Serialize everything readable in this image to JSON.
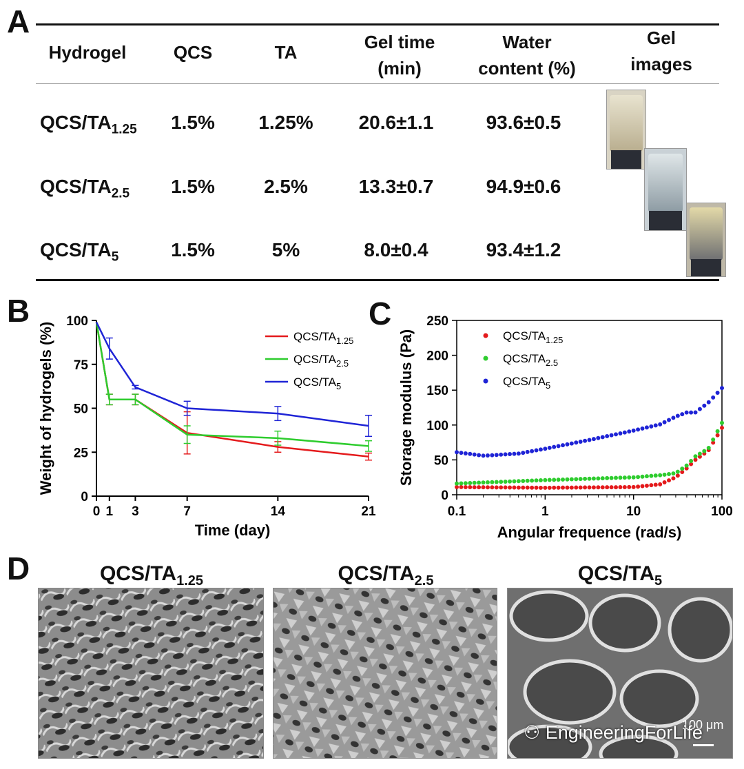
{
  "panels": {
    "a": "A",
    "b": "B",
    "c": "C",
    "d": "D"
  },
  "table": {
    "headers": {
      "hydrogel": "Hydrogel",
      "qcs": "QCS",
      "ta": "TA",
      "gel_time_1": "Gel time",
      "gel_time_2": "(min)",
      "water_1": "Water",
      "water_2": "content (%)",
      "images_1": "Gel",
      "images_2": "images"
    },
    "rows": [
      {
        "name": "QCS/TA",
        "sub": "1.25",
        "qcs": "1.5%",
        "ta": "1.25%",
        "gel_time": "20.6±1.1",
        "water": "93.6±0.5"
      },
      {
        "name": "QCS/TA",
        "sub": "2.5",
        "qcs": "1.5%",
        "ta": "2.5%",
        "gel_time": "13.3±0.7",
        "water": "94.9±0.6"
      },
      {
        "name": "QCS/TA",
        "sub": "5",
        "qcs": "1.5%",
        "ta": "5%",
        "gel_time": "8.0±0.4",
        "water": "93.4±1.2"
      }
    ]
  },
  "chart_data": [
    {
      "type": "line",
      "panel": "B",
      "xlabel": "Time (day)",
      "ylabel": "Weight of hydrogels (%)",
      "xlim": [
        0,
        21
      ],
      "ylim": [
        0,
        100
      ],
      "xticks": [
        0,
        1,
        3,
        7,
        14,
        21
      ],
      "yticks": [
        0,
        25,
        50,
        75,
        100
      ],
      "x": [
        0,
        1,
        3,
        7,
        14,
        21
      ],
      "legend_position": "top-right",
      "series": [
        {
          "name": "QCS/TA",
          "sub": "1.25",
          "color": "#e41a1c",
          "values": [
            99,
            55,
            55,
            36,
            28,
            22.5
          ],
          "errors": [
            0,
            3,
            3,
            12,
            3,
            2
          ]
        },
        {
          "name": "QCS/TA",
          "sub": "2.5",
          "color": "#2ecc2e",
          "values": [
            99,
            55,
            55,
            35,
            33,
            28.5
          ],
          "errors": [
            0,
            3,
            3,
            5,
            4,
            3
          ]
        },
        {
          "name": "QCS/TA",
          "sub": "5",
          "color": "#1f24d6",
          "values": [
            99,
            84,
            62,
            50,
            47,
            40
          ],
          "errors": [
            0,
            6,
            1,
            4,
            4,
            6
          ]
        }
      ]
    },
    {
      "type": "scatter",
      "panel": "C",
      "xlabel": "Angular frequence (rad/s)",
      "ylabel": "Storage modulus (Pa)",
      "xscale": "log",
      "xlim": [
        0.1,
        100
      ],
      "ylim": [
        0,
        250
      ],
      "xticks": [
        0.1,
        1,
        10,
        100
      ],
      "xtick_labels": [
        "0.1",
        "1",
        "10",
        "100"
      ],
      "yticks": [
        0,
        50,
        100,
        150,
        200,
        250
      ],
      "legend_position": "top-left",
      "series": [
        {
          "name": "QCS/TA",
          "sub": "1.25",
          "color": "#e41a1c",
          "anchors_x": [
            0.1,
            1,
            10,
            20,
            30,
            40,
            50,
            70,
            100
          ],
          "anchors_y": [
            11,
            10,
            11,
            15,
            25,
            38,
            50,
            63,
            96
          ]
        },
        {
          "name": "QCS/TA",
          "sub": "2.5",
          "color": "#2ecc2e",
          "anchors_x": [
            0.1,
            1,
            10,
            20,
            30,
            40,
            50,
            70,
            100
          ],
          "anchors_y": [
            16,
            21,
            25,
            28,
            31,
            42,
            55,
            66,
            103
          ]
        },
        {
          "name": "QCS/TA",
          "sub": "5",
          "color": "#1f24d6",
          "anchors_x": [
            0.1,
            0.2,
            0.5,
            1,
            3,
            10,
            20,
            30,
            40,
            50,
            70,
            100
          ],
          "anchors_y": [
            61,
            56,
            59,
            66,
            78,
            92,
            101,
            112,
            118,
            118,
            132,
            153
          ]
        }
      ]
    }
  ],
  "sem": {
    "titles": [
      {
        "name": "QCS/TA",
        "sub": "1.25"
      },
      {
        "name": "QCS/TA",
        "sub": "2.5"
      },
      {
        "name": "QCS/TA",
        "sub": "5"
      }
    ],
    "scale_label": "100 μm",
    "watermark": "EngineeringForLife"
  }
}
